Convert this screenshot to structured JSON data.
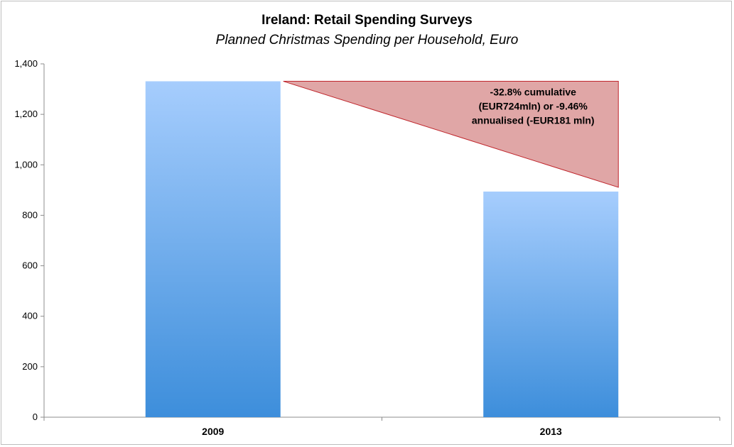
{
  "chart_data": {
    "type": "bar",
    "title": "Ireland: Retail Spending Surveys",
    "subtitle": "Planned Christmas Spending per Household, Euro",
    "categories": [
      "2009",
      "2013"
    ],
    "values": [
      1331,
      894
    ],
    "xlabel": "",
    "ylabel": "",
    "ylim": [
      0,
      1400
    ],
    "yticks": [
      0,
      200,
      400,
      600,
      800,
      1000,
      1200,
      1400
    ],
    "ytick_labels": [
      "0",
      "200",
      "400",
      "600",
      "800",
      "1,000",
      "1,200",
      "1,400"
    ],
    "grid": false,
    "legend": "none",
    "annotation": {
      "lines": [
        "-32.8% cumulative",
        "(EUR724mln) or -9.46%",
        "annualised (-EUR181 mln)"
      ]
    },
    "colors": {
      "bar_top": "#a6cdfd",
      "bar_bottom": "#3d8edb",
      "triangle_fill": "#e0a6a6",
      "triangle_stroke": "#c0272d",
      "axis": "#8c8c8c"
    }
  }
}
